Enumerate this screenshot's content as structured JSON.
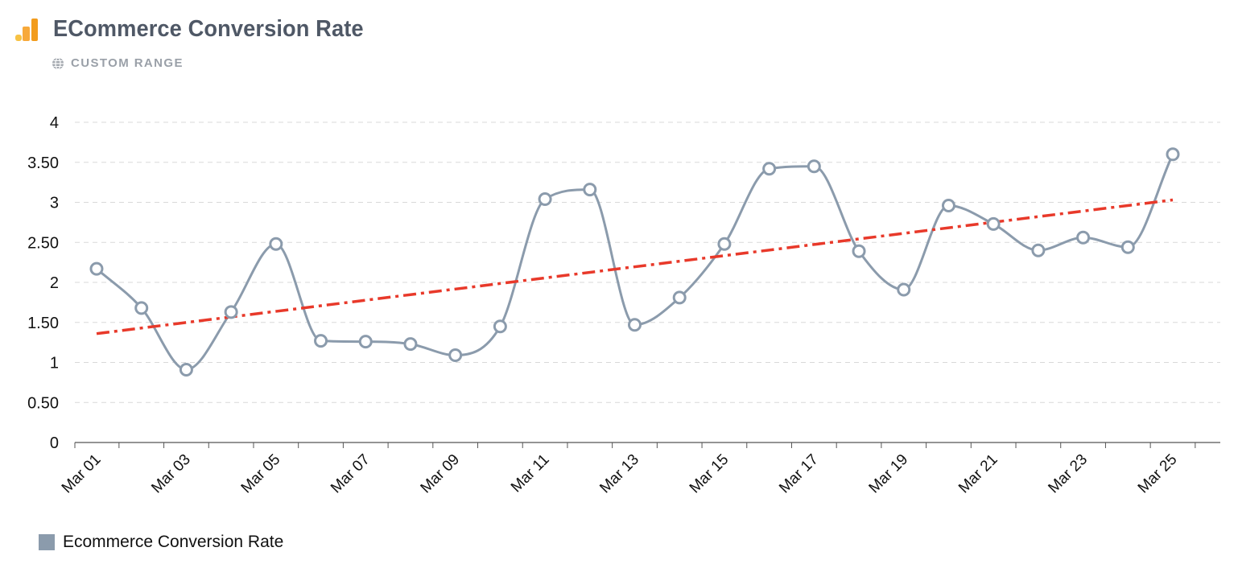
{
  "header": {
    "title": "ECommerce Conversion Rate",
    "logo_icon": "analytics-bars-icon",
    "subtitle_icon": "globe-icon",
    "subtitle": "CUSTOM RANGE"
  },
  "colors": {
    "series": "#8b9bac",
    "trendline": "#e8392a",
    "grid": "#d9d9d9",
    "title": "#4f5866",
    "subtitle": "#9aa0a8",
    "logo_orange": "#f29c1d",
    "logo_yellow": "#f7c244"
  },
  "legend": {
    "label": "Ecommerce Conversion Rate"
  },
  "chart_data": {
    "type": "line",
    "x": [
      "Mar 01",
      "Mar 02",
      "Mar 03",
      "Mar 04",
      "Mar 05",
      "Mar 06",
      "Mar 07",
      "Mar 08",
      "Mar 09",
      "Mar 10",
      "Mar 11",
      "Mar 12",
      "Mar 13",
      "Mar 14",
      "Mar 15",
      "Mar 16",
      "Mar 17",
      "Mar 18",
      "Mar 19",
      "Mar 20",
      "Mar 21",
      "Mar 22",
      "Mar 23",
      "Mar 24",
      "Mar 25"
    ],
    "x_tick_labels": [
      "Mar 01",
      "Mar 03",
      "Mar 05",
      "Mar 07",
      "Mar 09",
      "Mar 11",
      "Mar 13",
      "Mar 15",
      "Mar 17",
      "Mar 19",
      "Mar 21",
      "Mar 23",
      "Mar 25"
    ],
    "series": [
      {
        "name": "Ecommerce Conversion Rate",
        "values": [
          2.17,
          1.68,
          0.91,
          1.63,
          2.48,
          1.27,
          1.26,
          1.23,
          1.09,
          1.45,
          3.04,
          3.16,
          1.47,
          1.81,
          2.48,
          3.42,
          3.45,
          2.39,
          1.91,
          2.96,
          2.73,
          2.4,
          2.56,
          2.44,
          3.6
        ]
      }
    ],
    "trendline": {
      "style": "dash-dot",
      "start": 1.36,
      "end": 3.03
    },
    "y_ticks": [
      "0",
      "0.50",
      "1",
      "1.50",
      "2",
      "2.50",
      "3",
      "3.50",
      "4"
    ],
    "ylim": [
      0,
      4
    ],
    "grid": "horizontal-dashed",
    "legend_position": "bottom-left"
  }
}
